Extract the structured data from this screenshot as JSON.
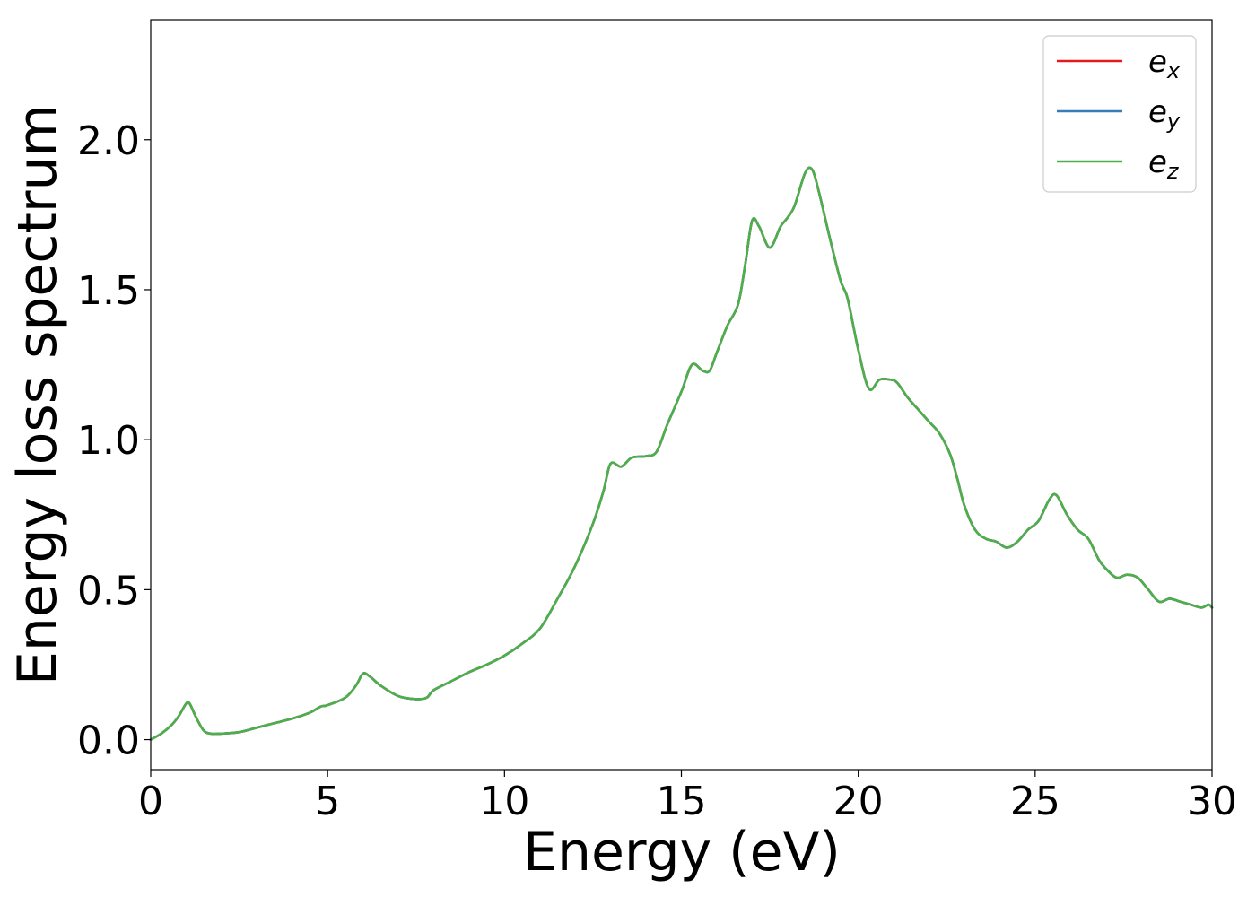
{
  "chart_data": {
    "type": "line",
    "title": "",
    "xlabel": "Energy (eV)",
    "ylabel": "Energy loss spectrum",
    "xlim": [
      0,
      30
    ],
    "ylim": [
      -0.1,
      2.4
    ],
    "xticks": [
      0,
      5,
      10,
      15,
      20,
      25,
      30
    ],
    "xtick_labels": [
      "0",
      "5",
      "10",
      "15",
      "20",
      "25",
      "30"
    ],
    "yticks": [
      0.0,
      0.5,
      1.0,
      1.5,
      2.0
    ],
    "ytick_labels": [
      "0.0",
      "0.5",
      "1.0",
      "1.5",
      "2.0"
    ],
    "grid": false,
    "legend_position": "top-right",
    "x": [
      0,
      0.3,
      0.6,
      0.8,
      1.0,
      1.1,
      1.3,
      1.5,
      1.7,
      2.0,
      2.5,
      3.0,
      3.5,
      4.0,
      4.5,
      4.8,
      5.0,
      5.5,
      5.8,
      6.0,
      6.2,
      6.5,
      7.0,
      7.5,
      7.8,
      8.0,
      8.5,
      9.0,
      9.5,
      10.0,
      10.5,
      11.0,
      11.5,
      12.0,
      12.5,
      12.8,
      13.0,
      13.3,
      13.6,
      14.0,
      14.3,
      14.6,
      15.0,
      15.3,
      15.6,
      15.8,
      16.0,
      16.3,
      16.6,
      16.8,
      17.0,
      17.2,
      17.5,
      17.8,
      18.0,
      18.2,
      18.5,
      18.7,
      18.9,
      19.2,
      19.5,
      19.7,
      20.0,
      20.3,
      20.6,
      20.9,
      21.1,
      21.4,
      21.7,
      22.0,
      22.3,
      22.6,
      22.8,
      23.0,
      23.3,
      23.6,
      23.9,
      24.2,
      24.5,
      24.8,
      25.1,
      25.4,
      25.6,
      25.9,
      26.2,
      26.5,
      26.8,
      27.0,
      27.3,
      27.6,
      27.9,
      28.2,
      28.5,
      28.8,
      29.1,
      29.4,
      29.7,
      29.9,
      30.0
    ],
    "series": [
      {
        "name": "ex",
        "color": "#e41a1c",
        "values": [
          0.0,
          0.02,
          0.05,
          0.08,
          0.12,
          0.12,
          0.07,
          0.03,
          0.02,
          0.02,
          0.025,
          0.04,
          0.055,
          0.07,
          0.09,
          0.11,
          0.115,
          0.14,
          0.18,
          0.22,
          0.21,
          0.18,
          0.145,
          0.135,
          0.14,
          0.165,
          0.195,
          0.225,
          0.25,
          0.28,
          0.32,
          0.37,
          0.47,
          0.58,
          0.72,
          0.83,
          0.92,
          0.91,
          0.94,
          0.945,
          0.96,
          1.05,
          1.16,
          1.25,
          1.23,
          1.23,
          1.29,
          1.38,
          1.45,
          1.58,
          1.73,
          1.71,
          1.64,
          1.71,
          1.74,
          1.78,
          1.89,
          1.9,
          1.82,
          1.67,
          1.53,
          1.47,
          1.3,
          1.17,
          1.2,
          1.2,
          1.19,
          1.14,
          1.1,
          1.06,
          1.02,
          0.95,
          0.87,
          0.78,
          0.7,
          0.67,
          0.66,
          0.64,
          0.66,
          0.7,
          0.73,
          0.8,
          0.815,
          0.75,
          0.7,
          0.67,
          0.6,
          0.57,
          0.54,
          0.55,
          0.54,
          0.5,
          0.46,
          0.47,
          0.46,
          0.45,
          0.44,
          0.45,
          0.44
        ]
      },
      {
        "name": "ey",
        "color": "#377eb8",
        "values": [
          0.0,
          0.02,
          0.05,
          0.08,
          0.12,
          0.12,
          0.07,
          0.03,
          0.02,
          0.02,
          0.025,
          0.04,
          0.055,
          0.07,
          0.09,
          0.11,
          0.115,
          0.14,
          0.18,
          0.22,
          0.21,
          0.18,
          0.145,
          0.135,
          0.14,
          0.165,
          0.195,
          0.225,
          0.25,
          0.28,
          0.32,
          0.37,
          0.47,
          0.58,
          0.72,
          0.83,
          0.92,
          0.91,
          0.94,
          0.945,
          0.96,
          1.05,
          1.16,
          1.25,
          1.23,
          1.23,
          1.29,
          1.38,
          1.45,
          1.58,
          1.73,
          1.71,
          1.64,
          1.71,
          1.74,
          1.78,
          1.89,
          1.9,
          1.82,
          1.67,
          1.53,
          1.47,
          1.3,
          1.17,
          1.2,
          1.2,
          1.19,
          1.14,
          1.1,
          1.06,
          1.02,
          0.95,
          0.87,
          0.78,
          0.7,
          0.67,
          0.66,
          0.64,
          0.66,
          0.7,
          0.73,
          0.8,
          0.815,
          0.75,
          0.7,
          0.67,
          0.6,
          0.57,
          0.54,
          0.55,
          0.54,
          0.5,
          0.46,
          0.47,
          0.46,
          0.45,
          0.44,
          0.45,
          0.44
        ]
      },
      {
        "name": "ez",
        "color": "#4daf4a",
        "values": [
          0.0,
          0.02,
          0.05,
          0.08,
          0.12,
          0.12,
          0.07,
          0.03,
          0.02,
          0.02,
          0.025,
          0.04,
          0.055,
          0.07,
          0.09,
          0.11,
          0.115,
          0.14,
          0.18,
          0.22,
          0.21,
          0.18,
          0.145,
          0.135,
          0.14,
          0.165,
          0.195,
          0.225,
          0.25,
          0.28,
          0.32,
          0.37,
          0.47,
          0.58,
          0.72,
          0.83,
          0.92,
          0.91,
          0.94,
          0.945,
          0.96,
          1.05,
          1.16,
          1.25,
          1.23,
          1.23,
          1.29,
          1.38,
          1.45,
          1.58,
          1.73,
          1.71,
          1.64,
          1.71,
          1.74,
          1.78,
          1.89,
          1.9,
          1.82,
          1.67,
          1.53,
          1.47,
          1.3,
          1.17,
          1.2,
          1.2,
          1.19,
          1.14,
          1.1,
          1.06,
          1.02,
          0.95,
          0.87,
          0.78,
          0.7,
          0.67,
          0.66,
          0.64,
          0.66,
          0.7,
          0.73,
          0.8,
          0.815,
          0.75,
          0.7,
          0.67,
          0.6,
          0.57,
          0.54,
          0.55,
          0.54,
          0.5,
          0.46,
          0.47,
          0.46,
          0.45,
          0.44,
          0.45,
          0.44
        ]
      }
    ],
    "legend": [
      {
        "base": "e",
        "sub": "x",
        "color": "#e41a1c"
      },
      {
        "base": "e",
        "sub": "y",
        "color": "#377eb8"
      },
      {
        "base": "e",
        "sub": "z",
        "color": "#4daf4a"
      }
    ]
  }
}
